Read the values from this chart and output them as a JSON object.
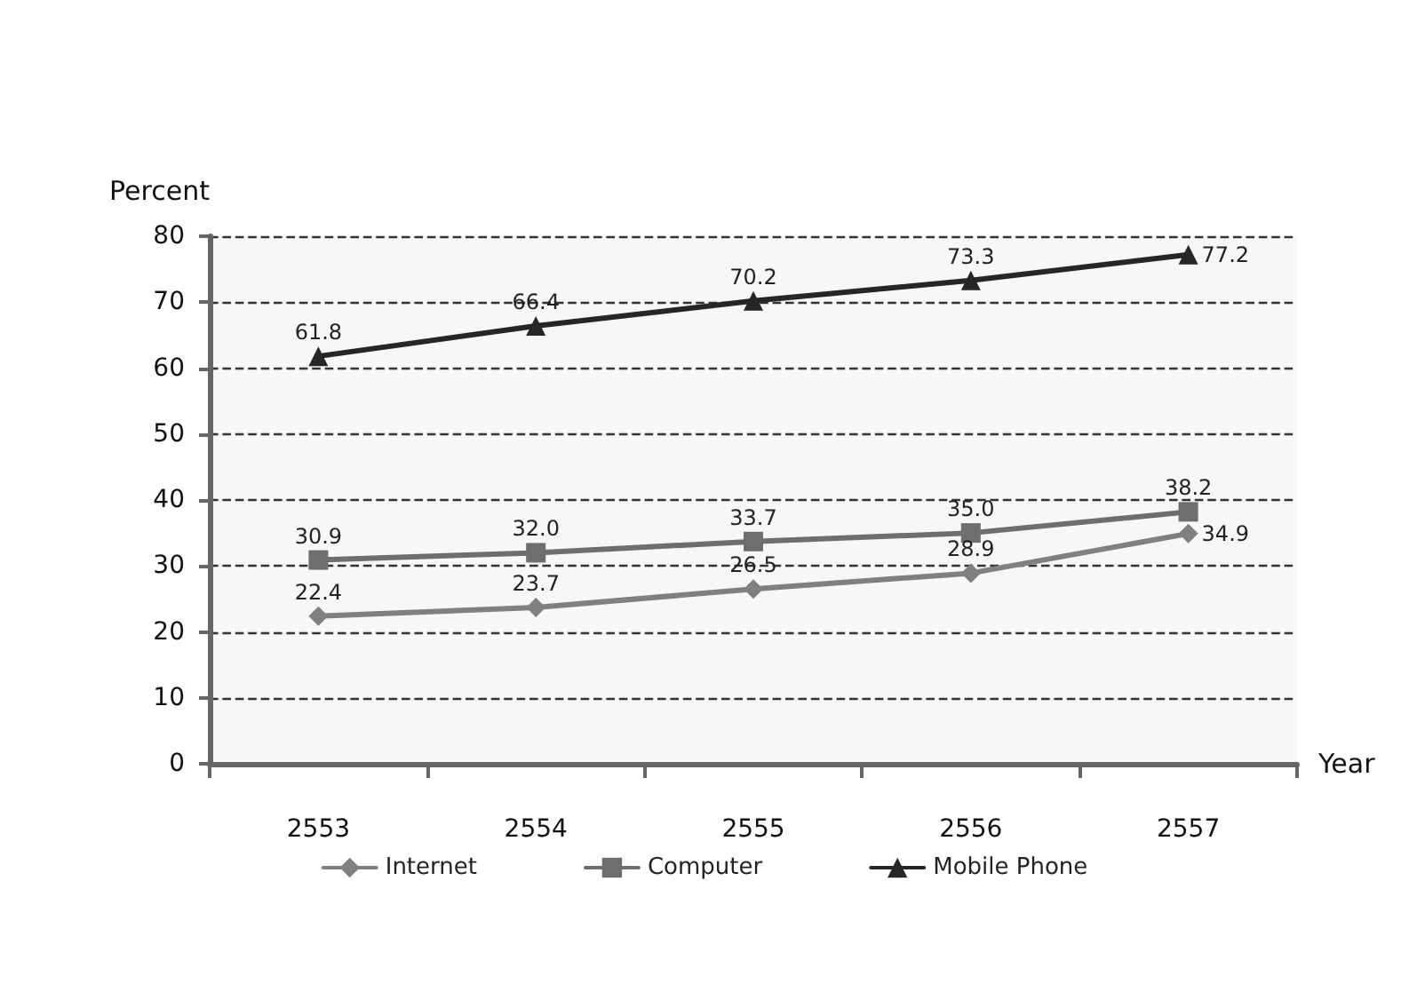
{
  "chart_data": {
    "type": "line",
    "xlabel": "Year",
    "ylabel": "Percent",
    "categories": [
      "2553",
      "2554",
      "2555",
      "2556",
      "2557"
    ],
    "series": [
      {
        "name": "Internet",
        "color": "#808080",
        "marker": "diamond",
        "values": [
          22.4,
          23.7,
          26.5,
          28.9,
          34.9
        ],
        "value_labels": [
          "22.4",
          "23.7",
          "26.5",
          "28.9",
          "34.9"
        ]
      },
      {
        "name": "Computer",
        "color": "#6e6e6e",
        "marker": "square",
        "values": [
          30.9,
          32.0,
          33.7,
          35.0,
          38.2
        ],
        "value_labels": [
          "30.9",
          "32.0",
          "33.7",
          "35.0",
          "38.2"
        ]
      },
      {
        "name": "Mobile Phone",
        "color": "#262626",
        "marker": "triangle",
        "values": [
          61.8,
          66.4,
          70.2,
          73.3,
          77.2
        ],
        "value_labels": [
          "61.8",
          "66.4",
          "70.2",
          "73.3",
          "77.2"
        ]
      }
    ],
    "ylim": [
      0,
      80
    ],
    "yticks": [
      0,
      10,
      20,
      30,
      40,
      50,
      60,
      70,
      80
    ],
    "grid": "y",
    "legend": "bottom",
    "line_style": "solid"
  }
}
